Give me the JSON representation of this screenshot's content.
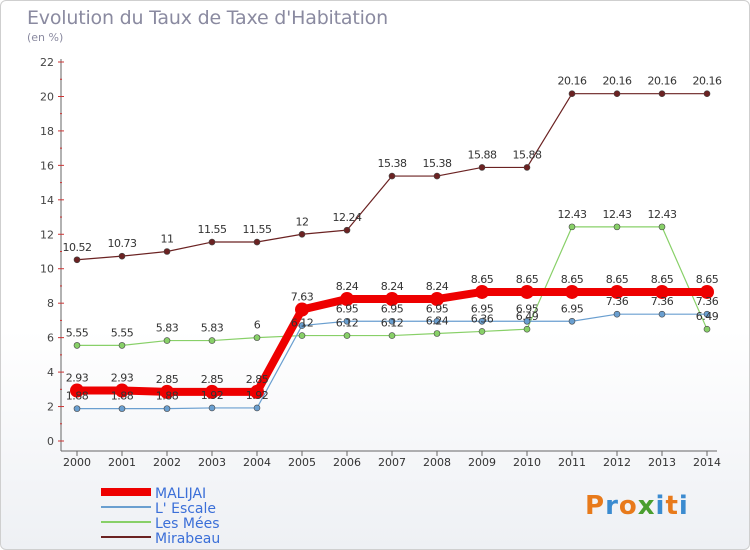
{
  "title": "Evolution du Taux de Taxe d'Habitation",
  "subtitle": "(en %)",
  "logo": {
    "text": "Proxiti",
    "colors": [
      "#e87a1b",
      "#3b8bd0",
      "#e87a1b",
      "#4a9e2f",
      "#3b8bd0",
      "#e87a1b",
      "#3b8bd0"
    ]
  },
  "chart_data": {
    "type": "line",
    "x": [
      "2000",
      "2001",
      "2002",
      "2003",
      "2004",
      "2005",
      "2006",
      "2007",
      "2008",
      "2009",
      "2010",
      "2011",
      "2012",
      "2013",
      "2014"
    ],
    "ylim": [
      0,
      22
    ],
    "yticks": [
      0,
      2,
      4,
      6,
      8,
      10,
      12,
      14,
      16,
      18,
      20,
      22
    ],
    "grid": "none",
    "legend_position": "bottom-left",
    "series": [
      {
        "name": "Mirabeau",
        "color": "#6b2222",
        "width": 1.2,
        "marker": 3,
        "values": [
          10.52,
          10.73,
          11,
          11.55,
          11.55,
          12,
          12.24,
          15.38,
          15.38,
          15.88,
          15.88,
          20.16,
          20.16,
          20.16,
          20.16
        ],
        "labels": [
          "10.52",
          "10.73",
          "11",
          "11.55",
          "11.55",
          "12",
          "12.24",
          "15.38",
          "15.38",
          "15.88",
          "15.88",
          "20.16",
          "20.16",
          "20.16",
          "20.16"
        ]
      },
      {
        "name": "Les Mées",
        "color": "#88d068",
        "width": 1.2,
        "marker": 3,
        "values": [
          5.55,
          5.55,
          5.83,
          5.83,
          6,
          6.12,
          6.12,
          6.12,
          6.24,
          6.36,
          6.49,
          12.43,
          12.43,
          12.43,
          6.49
        ],
        "labels": [
          "5.55",
          "5.55",
          "5.83",
          "5.83",
          "6",
          "6.12",
          "6.12",
          "6.12",
          "6.24",
          "6.36",
          "6.49",
          "12.43",
          "12.43",
          "12.43",
          "6.49"
        ]
      },
      {
        "name": "L' Escale",
        "color": "#6a9fd0",
        "width": 1.2,
        "marker": 3,
        "values": [
          1.88,
          1.88,
          1.88,
          1.92,
          1.92,
          6.7,
          6.95,
          6.95,
          6.95,
          6.95,
          6.95,
          6.95,
          7.36,
          7.36,
          7.36
        ],
        "labels": [
          "1.88",
          "1.88",
          "1.88",
          "1.92",
          "1.92",
          "",
          "6.95",
          "6.95",
          "6.95",
          "6.95",
          "6.95",
          "6.95",
          "7.36",
          "7.36",
          "7.36"
        ]
      },
      {
        "name": "MALIJAI",
        "color": "#ee0000",
        "width": 8,
        "marker": 7,
        "values": [
          2.93,
          2.93,
          2.85,
          2.85,
          2.85,
          7.63,
          8.24,
          8.24,
          8.24,
          8.65,
          8.65,
          8.65,
          8.65,
          8.65,
          8.65
        ],
        "labels": [
          "2.93",
          "2.93",
          "2.85",
          "2.85",
          "2.85",
          "7.63",
          "8.24",
          "8.24",
          "8.24",
          "8.65",
          "8.65",
          "8.65",
          "8.65",
          "8.65",
          "8.65"
        ]
      }
    ],
    "legend_order": [
      "MALIJAI",
      "L' Escale",
      "Les Mées",
      "Mirabeau"
    ]
  }
}
